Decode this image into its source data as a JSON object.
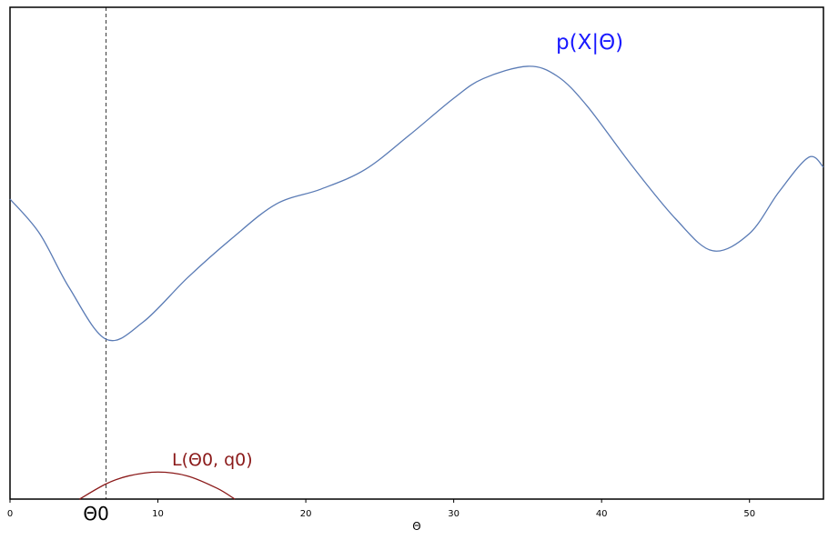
{
  "chart_data": {
    "type": "line",
    "title": "",
    "xlabel": "Θ",
    "ylabel": "",
    "xlim": [
      0,
      55
    ],
    "xticks": [
      0,
      10,
      20,
      30,
      40,
      50
    ],
    "grid": false,
    "theta0": 6.5,
    "theta0_label": "Θ0",
    "series": [
      {
        "name": "p(X|Θ)",
        "color": "#5a7bb5",
        "label_color": "#1a1aff",
        "x": [
          0,
          2,
          4,
          6.5,
          9,
          12,
          15,
          18,
          21,
          24,
          27,
          30,
          32,
          35,
          37,
          39,
          42,
          45,
          47.5,
          50,
          52,
          54,
          55
        ],
        "y": [
          0.61,
          0.54,
          0.43,
          0.325,
          0.36,
          0.45,
          0.53,
          0.6,
          0.63,
          0.67,
          0.74,
          0.815,
          0.855,
          0.88,
          0.86,
          0.8,
          0.68,
          0.57,
          0.505,
          0.54,
          0.625,
          0.695,
          0.675
        ]
      },
      {
        "name": "L(Θ0, q0)",
        "color": "#8b1a1a",
        "label_color": "#8b1a1a",
        "x": [
          4.7,
          6.5,
          8,
          10,
          12,
          14,
          15.2
        ],
        "y": [
          0.0,
          0.031,
          0.047,
          0.055,
          0.047,
          0.022,
          0.0
        ]
      }
    ]
  }
}
